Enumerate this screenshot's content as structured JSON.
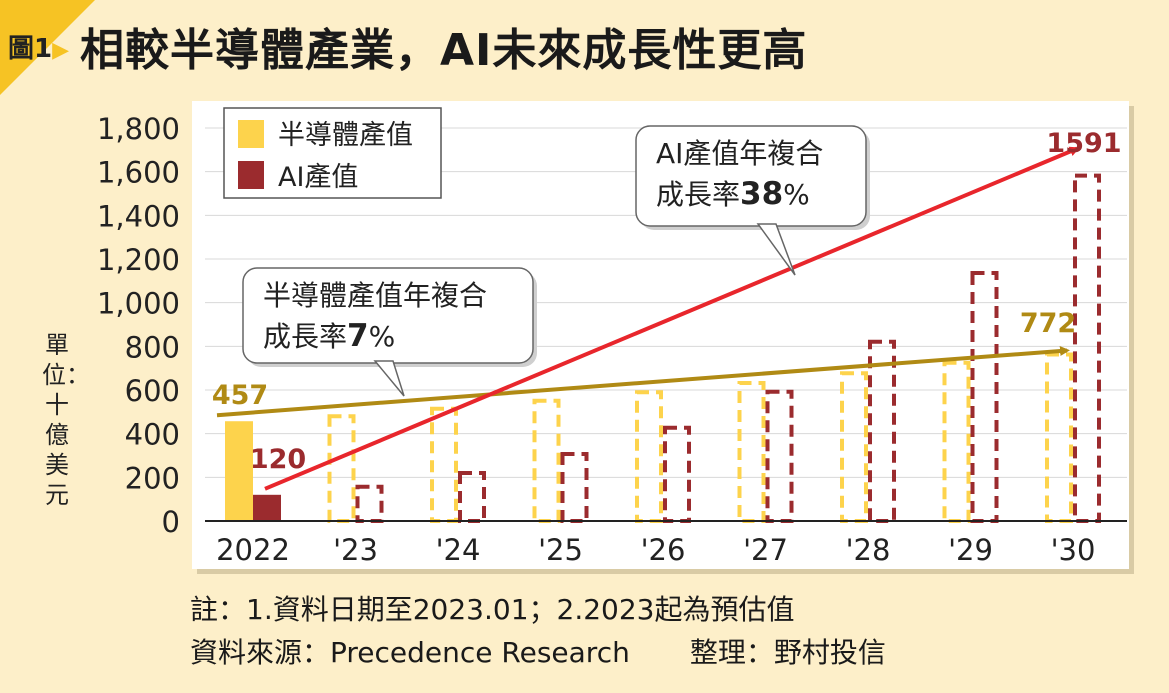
{
  "header": {
    "figure_tag": "圖1",
    "title": "相較半導體產業，AI未來成長性更高"
  },
  "unit_label": "單位：十億美元",
  "notes": {
    "line1": "註：1.資料日期至2023.01；2.2023起為預估值",
    "source": "資料來源：Precedence Research",
    "compiled": "整理：野村投信"
  },
  "colors": {
    "semiconductor": "#fdd34c",
    "ai": "#9b2b2e",
    "semi_trend": "#b08a14",
    "ai_trend": "#e8262c"
  },
  "chart_data": {
    "type": "bar",
    "categories": [
      "2022",
      "'23",
      "'24",
      "'25",
      "'26",
      "'27",
      "'28",
      "'29",
      "'30"
    ],
    "ylim": [
      0,
      1800
    ],
    "yticks": [
      "0",
      "200",
      "400",
      "600",
      "800",
      "1,000",
      "1,200",
      "1,400",
      "1,600",
      "1,800"
    ],
    "series": [
      {
        "name": "半導體產值",
        "values": [
          457,
          489,
          523,
          560,
          599,
          641,
          686,
          734,
          772
        ]
      },
      {
        "name": "AI產值",
        "values": [
          120,
          166,
          229,
          316,
          436,
          601,
          830,
          1145,
          1591
        ]
      }
    ],
    "estimated_from_index": 1,
    "legend_position": "top-left",
    "data_labels": {
      "semi_start": "457",
      "ai_start": "120",
      "semi_end": "772",
      "ai_end": "1591"
    },
    "callouts": {
      "ai": {
        "line1": "AI產值年複合",
        "line2_prefix": "成長率",
        "rate": "38",
        "pct": "%"
      },
      "semi": {
        "line1": "半導體產值年複合",
        "line2_prefix": "成長率",
        "rate": "7",
        "pct": "%"
      }
    }
  }
}
